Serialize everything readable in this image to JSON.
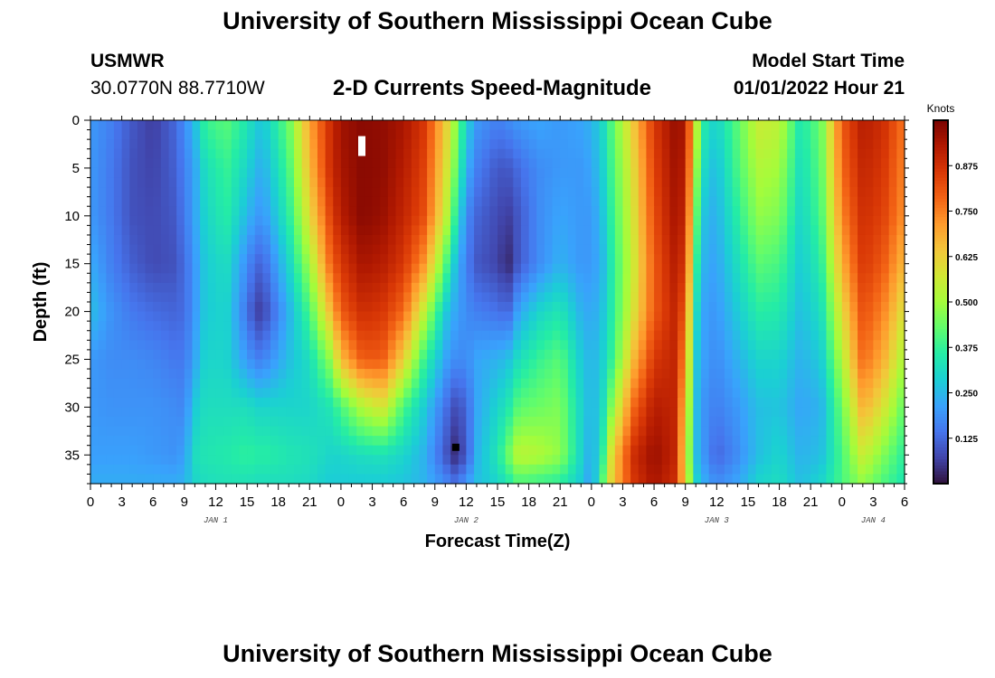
{
  "header": {
    "title": "University of Southern Mississippi Ocean Cube",
    "station": "USMWR",
    "coords": "30.0770N  88.7710W",
    "subtitle": "2-D Currents Speed-Magnitude",
    "start_label": "Model Start Time",
    "start_value": "01/01/2022 Hour 21"
  },
  "footer": {
    "title": "University of Southern Mississippi Ocean Cube"
  },
  "chart_data": {
    "type": "heatmap",
    "title": "2-D Currents Speed-Magnitude",
    "xlabel": "Forecast Time(Z)",
    "ylabel": "Depth (ft)",
    "x_unit": "hours since 01/01/2022 00Z",
    "xlim": [
      0,
      78
    ],
    "ylim": [
      38,
      0
    ],
    "x_ticks": [
      {
        "x": 0,
        "label": "0"
      },
      {
        "x": 3,
        "label": "3"
      },
      {
        "x": 6,
        "label": "6"
      },
      {
        "x": 9,
        "label": "9"
      },
      {
        "x": 12,
        "label": "12"
      },
      {
        "x": 15,
        "label": "15"
      },
      {
        "x": 18,
        "label": "18"
      },
      {
        "x": 21,
        "label": "21"
      },
      {
        "x": 24,
        "label": "0"
      },
      {
        "x": 27,
        "label": "3"
      },
      {
        "x": 30,
        "label": "6"
      },
      {
        "x": 33,
        "label": "9"
      },
      {
        "x": 36,
        "label": "12"
      },
      {
        "x": 39,
        "label": "15"
      },
      {
        "x": 42,
        "label": "18"
      },
      {
        "x": 45,
        "label": "21"
      },
      {
        "x": 48,
        "label": "0"
      },
      {
        "x": 51,
        "label": "3"
      },
      {
        "x": 54,
        "label": "6"
      },
      {
        "x": 57,
        "label": "9"
      },
      {
        "x": 60,
        "label": "12"
      },
      {
        "x": 63,
        "label": "15"
      },
      {
        "x": 66,
        "label": "18"
      },
      {
        "x": 69,
        "label": "21"
      },
      {
        "x": 72,
        "label": "0"
      },
      {
        "x": 75,
        "label": "3"
      },
      {
        "x": 78,
        "label": "6"
      }
    ],
    "date_labels": [
      {
        "x": 12,
        "label": "JAN 1"
      },
      {
        "x": 36,
        "label": "JAN 2"
      },
      {
        "x": 60,
        "label": "JAN 3"
      },
      {
        "x": 75,
        "label": "JAN 4"
      }
    ],
    "y_ticks": [
      0,
      5,
      10,
      15,
      20,
      25,
      30,
      35
    ],
    "colorbar": {
      "title": "Knots",
      "range": [
        0,
        1.0
      ],
      "ticks": [
        0.125,
        0.25,
        0.375,
        0.5,
        0.625,
        0.75,
        0.875
      ],
      "tick_labels": [
        "0.125",
        "0.250",
        "0.375",
        "0.500",
        "0.625",
        "0.750",
        "0.875"
      ]
    },
    "grid": false,
    "depth_rows": [
      0,
      5,
      10,
      15,
      20,
      25,
      30,
      35,
      38
    ],
    "time_profiles": [
      {
        "hour": 0,
        "speed_knots": [
          0.2,
          0.2,
          0.2,
          0.23,
          0.26,
          0.2,
          0.2,
          0.21,
          0.23
        ]
      },
      {
        "hour": 2,
        "speed_knots": [
          0.16,
          0.15,
          0.15,
          0.16,
          0.19,
          0.18,
          0.19,
          0.21,
          0.23
        ]
      },
      {
        "hour": 4,
        "speed_knots": [
          0.1,
          0.09,
          0.09,
          0.11,
          0.15,
          0.18,
          0.19,
          0.21,
          0.23
        ]
      },
      {
        "hour": 6,
        "speed_knots": [
          0.06,
          0.07,
          0.08,
          0.08,
          0.13,
          0.17,
          0.19,
          0.2,
          0.23
        ]
      },
      {
        "hour": 8,
        "speed_knots": [
          0.12,
          0.11,
          0.1,
          0.09,
          0.12,
          0.15,
          0.18,
          0.19,
          0.23
        ]
      },
      {
        "hour": 9,
        "speed_knots": [
          0.18,
          0.16,
          0.15,
          0.13,
          0.13,
          0.15,
          0.17,
          0.21,
          0.24
        ]
      },
      {
        "hour": 10,
        "speed_knots": [
          0.26,
          0.22,
          0.22,
          0.2,
          0.2,
          0.22,
          0.28,
          0.32,
          0.3
        ]
      },
      {
        "hour": 11,
        "speed_knots": [
          0.38,
          0.32,
          0.3,
          0.28,
          0.28,
          0.3,
          0.32,
          0.34,
          0.32
        ]
      },
      {
        "hour": 13,
        "speed_knots": [
          0.42,
          0.38,
          0.36,
          0.32,
          0.3,
          0.3,
          0.32,
          0.35,
          0.33
        ]
      },
      {
        "hour": 15,
        "speed_knots": [
          0.34,
          0.3,
          0.25,
          0.18,
          0.14,
          0.2,
          0.32,
          0.37,
          0.33
        ]
      },
      {
        "hour": 16,
        "speed_knots": [
          0.28,
          0.24,
          0.2,
          0.12,
          0.06,
          0.16,
          0.3,
          0.36,
          0.32
        ]
      },
      {
        "hour": 17,
        "speed_knots": [
          0.3,
          0.26,
          0.22,
          0.15,
          0.1,
          0.18,
          0.3,
          0.36,
          0.32
        ]
      },
      {
        "hour": 19,
        "speed_knots": [
          0.44,
          0.4,
          0.36,
          0.3,
          0.24,
          0.26,
          0.3,
          0.34,
          0.32
        ]
      },
      {
        "hour": 21,
        "speed_knots": [
          0.7,
          0.66,
          0.6,
          0.5,
          0.4,
          0.32,
          0.3,
          0.33,
          0.31
        ]
      },
      {
        "hour": 23,
        "speed_knots": [
          0.88,
          0.88,
          0.84,
          0.78,
          0.66,
          0.48,
          0.34,
          0.3,
          0.28
        ]
      },
      {
        "hour": 24,
        "speed_knots": [
          0.95,
          0.94,
          0.92,
          0.86,
          0.8,
          0.66,
          0.4,
          0.3,
          0.28
        ]
      },
      {
        "hour": 26,
        "speed_knots": [
          0.98,
          0.98,
          0.98,
          0.94,
          0.88,
          0.8,
          0.52,
          0.32,
          0.28
        ]
      },
      {
        "hour": 28,
        "speed_knots": [
          0.97,
          0.97,
          0.96,
          0.92,
          0.86,
          0.8,
          0.58,
          0.33,
          0.28
        ]
      },
      {
        "hour": 30,
        "speed_knots": [
          0.94,
          0.92,
          0.9,
          0.86,
          0.78,
          0.62,
          0.4,
          0.3,
          0.27
        ]
      },
      {
        "hour": 32,
        "speed_knots": [
          0.86,
          0.84,
          0.82,
          0.72,
          0.54,
          0.38,
          0.28,
          0.24,
          0.24
        ]
      },
      {
        "hour": 34,
        "speed_knots": [
          0.64,
          0.6,
          0.56,
          0.42,
          0.28,
          0.22,
          0.14,
          0.1,
          0.18
        ]
      },
      {
        "hour": 35,
        "speed_knots": [
          0.48,
          0.44,
          0.36,
          0.26,
          0.22,
          0.18,
          0.08,
          0.03,
          0.14
        ]
      },
      {
        "hour": 36,
        "speed_knots": [
          0.3,
          0.24,
          0.18,
          0.16,
          0.18,
          0.18,
          0.12,
          0.1,
          0.2
        ]
      },
      {
        "hour": 37,
        "speed_knots": [
          0.2,
          0.16,
          0.12,
          0.1,
          0.16,
          0.22,
          0.22,
          0.24,
          0.26
        ]
      },
      {
        "hour": 39,
        "speed_knots": [
          0.16,
          0.1,
          0.08,
          0.07,
          0.14,
          0.24,
          0.3,
          0.34,
          0.3
        ]
      },
      {
        "hour": 40,
        "speed_knots": [
          0.18,
          0.1,
          0.06,
          0.03,
          0.12,
          0.26,
          0.34,
          0.44,
          0.34
        ]
      },
      {
        "hour": 41,
        "speed_knots": [
          0.2,
          0.13,
          0.1,
          0.1,
          0.22,
          0.32,
          0.42,
          0.54,
          0.4
        ]
      },
      {
        "hour": 43,
        "speed_knots": [
          0.22,
          0.18,
          0.18,
          0.18,
          0.3,
          0.38,
          0.44,
          0.52,
          0.38
        ]
      },
      {
        "hour": 45,
        "speed_knots": [
          0.2,
          0.2,
          0.22,
          0.24,
          0.34,
          0.42,
          0.46,
          0.48,
          0.36
        ]
      },
      {
        "hour": 47,
        "speed_knots": [
          0.22,
          0.2,
          0.2,
          0.2,
          0.24,
          0.28,
          0.3,
          0.3,
          0.28
        ]
      },
      {
        "hour": 48,
        "speed_knots": [
          0.24,
          0.22,
          0.2,
          0.2,
          0.22,
          0.24,
          0.24,
          0.22,
          0.2
        ]
      },
      {
        "hour": 49,
        "speed_knots": [
          0.3,
          0.28,
          0.26,
          0.24,
          0.26,
          0.28,
          0.3,
          0.34,
          0.4
        ]
      },
      {
        "hour": 50,
        "speed_knots": [
          0.42,
          0.4,
          0.38,
          0.36,
          0.36,
          0.38,
          0.48,
          0.62,
          0.64
        ]
      },
      {
        "hour": 52,
        "speed_knots": [
          0.64,
          0.6,
          0.58,
          0.56,
          0.58,
          0.66,
          0.78,
          0.88,
          0.86
        ]
      },
      {
        "hour": 54,
        "speed_knots": [
          0.86,
          0.84,
          0.82,
          0.8,
          0.8,
          0.86,
          0.92,
          0.96,
          0.94
        ]
      },
      {
        "hour": 56,
        "speed_knots": [
          0.96,
          0.95,
          0.94,
          0.92,
          0.9,
          0.9,
          0.9,
          0.9,
          0.88
        ]
      },
      {
        "hour": 57,
        "speed_knots": [
          0.94,
          0.92,
          0.9,
          0.86,
          0.8,
          0.72,
          0.64,
          0.6,
          0.62
        ]
      },
      {
        "hour": 58,
        "speed_knots": [
          0.56,
          0.5,
          0.44,
          0.38,
          0.32,
          0.28,
          0.26,
          0.26,
          0.3
        ]
      },
      {
        "hour": 59,
        "speed_knots": [
          0.32,
          0.28,
          0.24,
          0.22,
          0.2,
          0.2,
          0.18,
          0.18,
          0.22
        ]
      },
      {
        "hour": 60,
        "speed_knots": [
          0.3,
          0.26,
          0.24,
          0.22,
          0.2,
          0.18,
          0.16,
          0.12,
          0.18
        ]
      },
      {
        "hour": 62,
        "speed_knots": [
          0.42,
          0.4,
          0.36,
          0.32,
          0.28,
          0.24,
          0.2,
          0.18,
          0.22
        ]
      },
      {
        "hour": 64,
        "speed_knots": [
          0.56,
          0.52,
          0.48,
          0.42,
          0.36,
          0.3,
          0.26,
          0.26,
          0.3
        ]
      },
      {
        "hour": 66,
        "speed_knots": [
          0.54,
          0.5,
          0.46,
          0.4,
          0.35,
          0.3,
          0.27,
          0.3,
          0.32
        ]
      },
      {
        "hour": 68,
        "speed_knots": [
          0.34,
          0.32,
          0.3,
          0.28,
          0.26,
          0.24,
          0.22,
          0.24,
          0.26
        ]
      },
      {
        "hour": 70,
        "speed_knots": [
          0.44,
          0.42,
          0.4,
          0.36,
          0.32,
          0.28,
          0.24,
          0.26,
          0.3
        ]
      },
      {
        "hour": 72,
        "speed_knots": [
          0.8,
          0.78,
          0.74,
          0.68,
          0.6,
          0.52,
          0.44,
          0.4,
          0.4
        ]
      },
      {
        "hour": 74,
        "speed_knots": [
          0.92,
          0.9,
          0.88,
          0.86,
          0.82,
          0.78,
          0.68,
          0.56,
          0.48
        ]
      },
      {
        "hour": 76,
        "speed_knots": [
          0.88,
          0.86,
          0.84,
          0.8,
          0.74,
          0.68,
          0.58,
          0.46,
          0.4
        ]
      },
      {
        "hour": 78,
        "speed_knots": [
          0.76,
          0.74,
          0.72,
          0.66,
          0.58,
          0.5,
          0.42,
          0.36,
          0.34
        ]
      }
    ],
    "markers": [
      {
        "type": "white",
        "hour": 26,
        "depth": 2.7
      },
      {
        "type": "black",
        "hour": 35,
        "depth": 34.2
      }
    ],
    "colors": {
      "scale": [
        "#30123b",
        "#4145ab",
        "#4675ed",
        "#39a2fc",
        "#1bcfd4",
        "#24eca6",
        "#61fc6c",
        "#a4fc3b",
        "#d1e834",
        "#f3c63a",
        "#fe9b2d",
        "#f36315",
        "#d93806",
        "#b11901",
        "#7a0402"
      ],
      "white_marker": "#ffffff",
      "black_marker": "#000000"
    }
  }
}
